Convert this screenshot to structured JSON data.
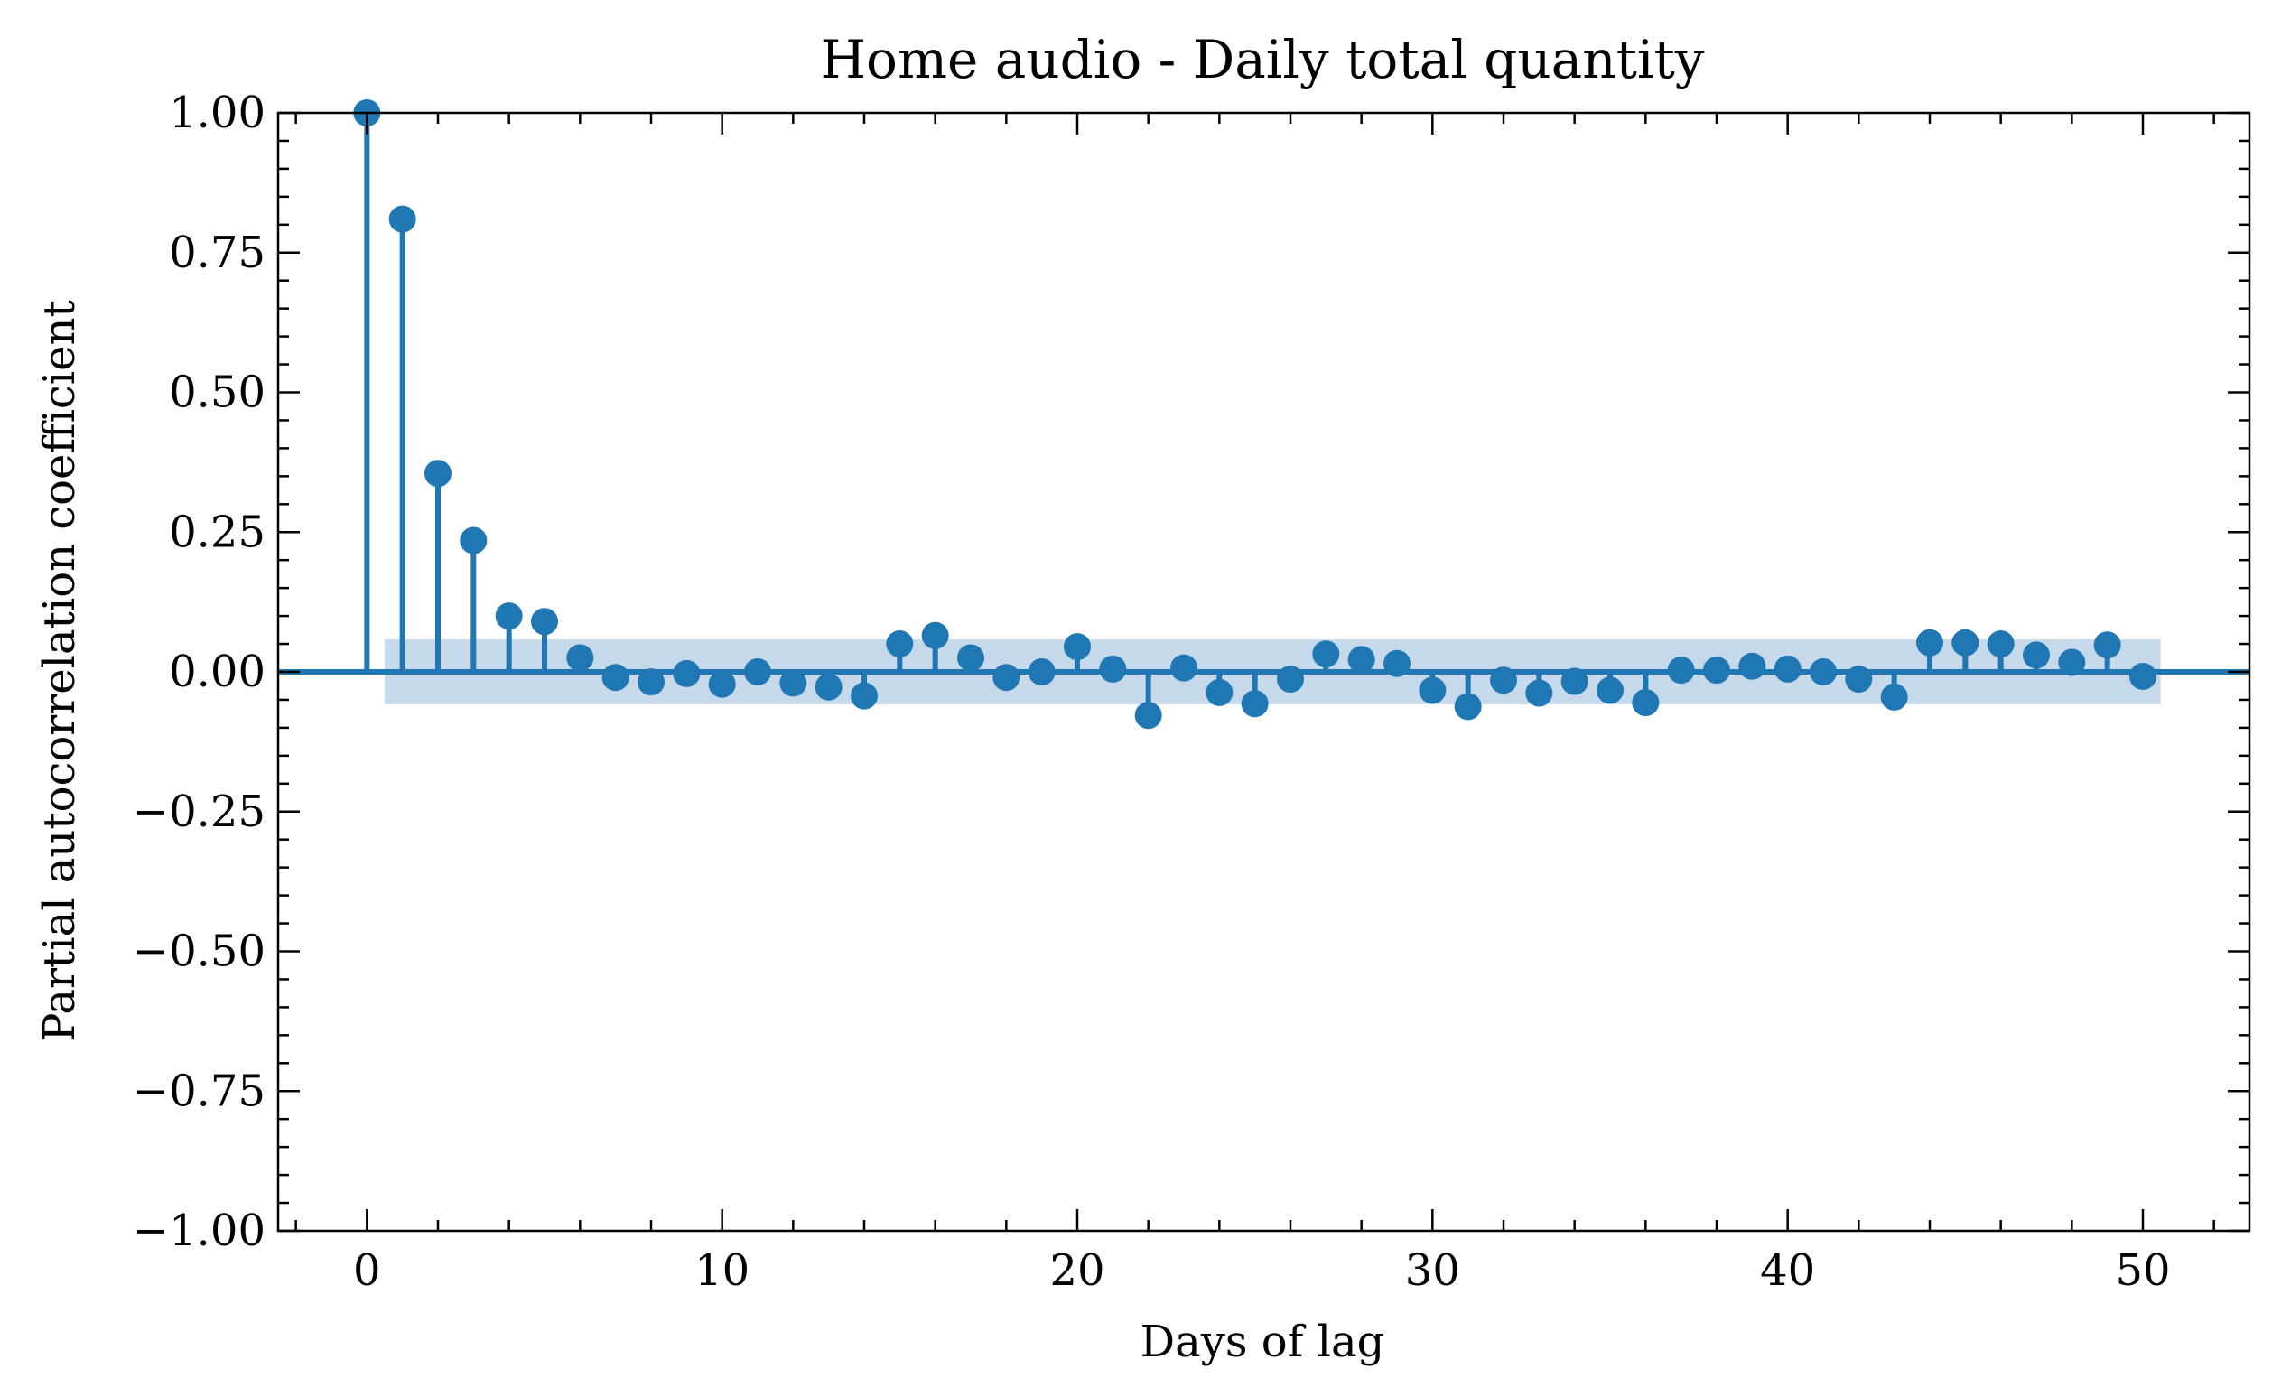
{
  "chart_data": {
    "type": "stem",
    "title": "Home audio - Daily total quantity",
    "xlabel": "Days of lag",
    "ylabel": "Partial autocorrelation coefficient",
    "xlim": [
      -2.5,
      53
    ],
    "ylim": [
      -1.0,
      1.0
    ],
    "x_ticks": [
      0,
      10,
      20,
      30,
      40,
      50
    ],
    "x_tick_labels": [
      "0",
      "10",
      "20",
      "30",
      "40",
      "50"
    ],
    "y_ticks": [
      1.0,
      0.75,
      0.5,
      0.25,
      0.0,
      -0.25,
      -0.5,
      -0.75,
      -1.0
    ],
    "y_tick_labels": [
      "1.00",
      "0.75",
      "0.50",
      "0.25",
      "0.00",
      "−0.25",
      "−0.50",
      "−0.75",
      "−1.00"
    ],
    "grid": false,
    "color": "#1f77b4",
    "confidence_band": {
      "x_range": [
        0.5,
        50.5
      ],
      "lower": -0.058,
      "upper": 0.058,
      "color": "#c5d9eb"
    },
    "lags": [
      0,
      1,
      2,
      3,
      4,
      5,
      6,
      7,
      8,
      9,
      10,
      11,
      12,
      13,
      14,
      15,
      16,
      17,
      18,
      19,
      20,
      21,
      22,
      23,
      24,
      25,
      26,
      27,
      28,
      29,
      30,
      31,
      32,
      33,
      34,
      35,
      36,
      37,
      38,
      39,
      40,
      41,
      42,
      43,
      44,
      45,
      46,
      47,
      48,
      49,
      50
    ],
    "values": [
      1.0,
      0.81,
      0.355,
      0.235,
      0.1,
      0.09,
      0.025,
      -0.01,
      -0.018,
      -0.003,
      -0.022,
      0.0,
      -0.02,
      -0.027,
      -0.043,
      0.05,
      0.065,
      0.025,
      -0.01,
      0.0,
      0.045,
      0.005,
      -0.078,
      0.007,
      -0.037,
      -0.057,
      -0.013,
      0.032,
      0.022,
      0.015,
      -0.033,
      -0.062,
      -0.015,
      -0.038,
      -0.017,
      -0.033,
      -0.055,
      0.003,
      0.003,
      0.01,
      0.005,
      0.0,
      -0.013,
      -0.045,
      0.052,
      0.052,
      0.05,
      0.03,
      0.017,
      0.048,
      -0.008
    ]
  }
}
